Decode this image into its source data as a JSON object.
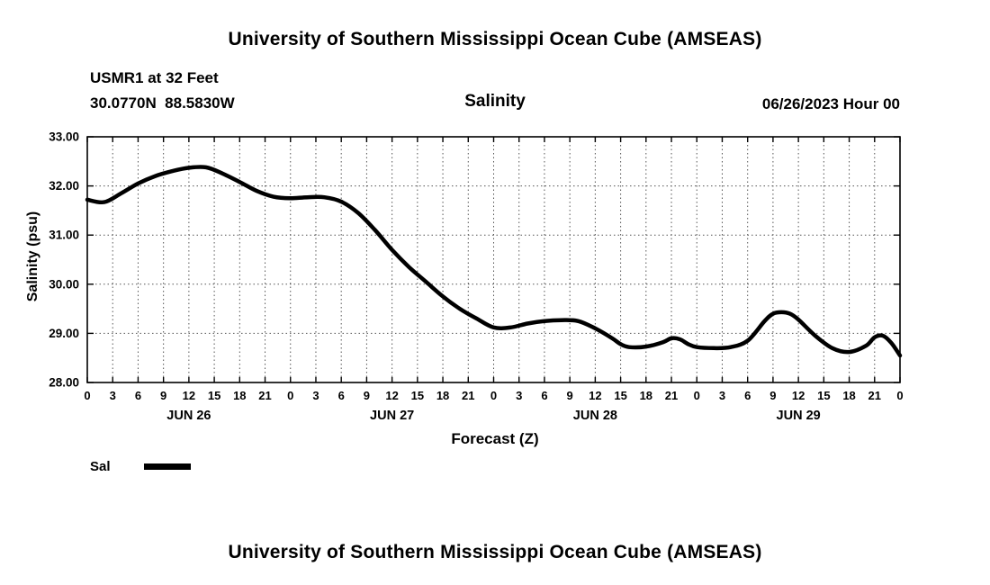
{
  "page": {
    "top_title": "University of Southern Mississippi Ocean Cube (AMSEAS)",
    "bottom_title": "University of Southern Mississippi Ocean Cube (AMSEAS)"
  },
  "header": {
    "station": "USMR1 at 32 Feet",
    "coordinates": "30.0770N  88.5830W",
    "plot_title": "Salinity",
    "run_time": "06/26/2023 Hour 00"
  },
  "chart_data": {
    "type": "line",
    "title": "Salinity",
    "xlabel": "Forecast (Z)",
    "ylabel": "Salinity (psu)",
    "ylim": [
      28,
      33
    ],
    "yticks": [
      28,
      29,
      30,
      31,
      32,
      33
    ],
    "ytick_labels": [
      "28.00",
      "29.00",
      "30.00",
      "31.00",
      "32.00",
      "33.00"
    ],
    "xlim": [
      0,
      96
    ],
    "xtick_step": 3,
    "xtick_hour_labels": [
      "0",
      "3",
      "6",
      "9",
      "12",
      "15",
      "18",
      "21"
    ],
    "day_labels": [
      {
        "label": "JUN 26",
        "center_hour": 12
      },
      {
        "label": "JUN 27",
        "center_hour": 36
      },
      {
        "label": "JUN 28",
        "center_hour": 60
      },
      {
        "label": "JUN 29",
        "center_hour": 84
      }
    ],
    "grid": "dotted",
    "grid_color": "#555555",
    "line_color": "#000000",
    "legend": {
      "label": "Sal",
      "position": "below-left"
    },
    "series": [
      {
        "name": "Sal",
        "x": [
          0,
          2,
          4,
          6,
          8,
          10,
          12,
          14,
          16,
          18,
          20,
          22,
          24,
          26,
          28,
          30,
          32,
          34,
          36,
          38,
          40,
          42,
          44,
          46,
          48,
          50,
          52,
          54,
          56,
          58,
          60,
          62,
          63,
          64,
          66,
          68,
          69,
          70,
          71,
          72,
          74,
          76,
          78,
          80,
          81,
          82,
          83,
          84,
          86,
          88,
          90,
          92,
          93,
          94,
          95,
          96
        ],
        "y": [
          31.72,
          31.67,
          31.85,
          32.05,
          32.2,
          32.3,
          32.37,
          32.38,
          32.25,
          32.08,
          31.9,
          31.78,
          31.75,
          31.77,
          31.77,
          31.68,
          31.45,
          31.1,
          30.7,
          30.35,
          30.05,
          29.75,
          29.5,
          29.3,
          29.12,
          29.12,
          29.2,
          29.25,
          29.27,
          29.25,
          29.1,
          28.9,
          28.78,
          28.72,
          28.73,
          28.82,
          28.9,
          28.88,
          28.78,
          28.72,
          28.7,
          28.72,
          28.85,
          29.25,
          29.4,
          29.43,
          29.4,
          29.28,
          28.95,
          28.7,
          28.62,
          28.75,
          28.92,
          28.95,
          28.8,
          28.55
        ]
      }
    ]
  }
}
